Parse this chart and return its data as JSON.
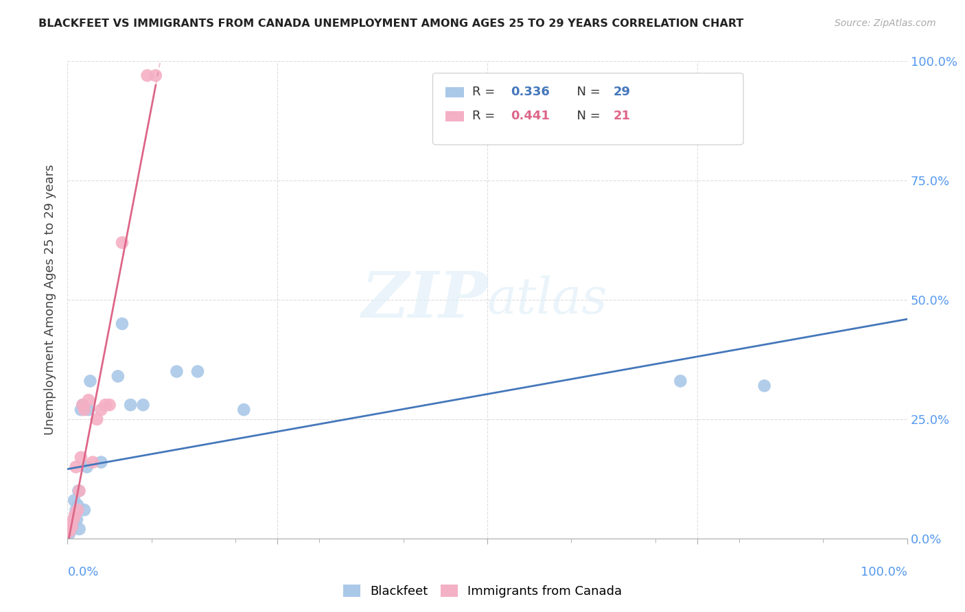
{
  "title": "BLACKFEET VS IMMIGRANTS FROM CANADA UNEMPLOYMENT AMONG AGES 25 TO 29 YEARS CORRELATION CHART",
  "source": "Source: ZipAtlas.com",
  "ylabel": "Unemployment Among Ages 25 to 29 years",
  "xlim": [
    0,
    1.0
  ],
  "ylim": [
    0,
    1.0
  ],
  "grid_ticks": [
    0.0,
    0.25,
    0.5,
    0.75,
    1.0
  ],
  "x_edge_labels": [
    "0.0%",
    "100.0%"
  ],
  "right_yticklabels": [
    "100.0%",
    "75.0%",
    "50.0%",
    "25.0%",
    "0.0%"
  ],
  "right_ytick_vals": [
    1.0,
    0.75,
    0.5,
    0.25,
    0.0
  ],
  "blackfeet_R": "0.336",
  "blackfeet_N": "29",
  "immigrants_R": "0.441",
  "immigrants_N": "21",
  "blackfeet_color": "#aac8e8",
  "immigrants_color": "#f4b0c4",
  "blackfeet_line_color": "#4477bb",
  "immigrants_line_color": "#dd6688",
  "watermark_zip": "ZIP",
  "watermark_atlas": "atlas",
  "blackfeet_x": [
    0.002,
    0.003,
    0.004,
    0.005,
    0.006,
    0.007,
    0.008,
    0.009,
    0.01,
    0.011,
    0.012,
    0.013,
    0.014,
    0.016,
    0.018,
    0.02,
    0.023,
    0.025,
    0.027,
    0.04,
    0.06,
    0.065,
    0.075,
    0.09,
    0.13,
    0.155,
    0.21,
    0.73,
    0.83
  ],
  "blackfeet_y": [
    0.01,
    0.015,
    0.03,
    0.02,
    0.025,
    0.035,
    0.08,
    0.05,
    0.06,
    0.04,
    0.07,
    0.1,
    0.02,
    0.27,
    0.28,
    0.06,
    0.15,
    0.27,
    0.33,
    0.16,
    0.34,
    0.45,
    0.28,
    0.28,
    0.35,
    0.35,
    0.27,
    0.33,
    0.32
  ],
  "immigrants_x": [
    0.002,
    0.003,
    0.004,
    0.005,
    0.007,
    0.009,
    0.01,
    0.012,
    0.014,
    0.016,
    0.018,
    0.02,
    0.025,
    0.03,
    0.035,
    0.04,
    0.045,
    0.05,
    0.065,
    0.095,
    0.105
  ],
  "immigrants_y": [
    0.015,
    0.02,
    0.03,
    0.025,
    0.04,
    0.05,
    0.15,
    0.06,
    0.1,
    0.17,
    0.28,
    0.27,
    0.29,
    0.16,
    0.25,
    0.27,
    0.28,
    0.28,
    0.62,
    0.97,
    0.97
  ],
  "background_color": "#ffffff",
  "grid_color": "#dddddd",
  "tick_color": "#aaaaaa"
}
